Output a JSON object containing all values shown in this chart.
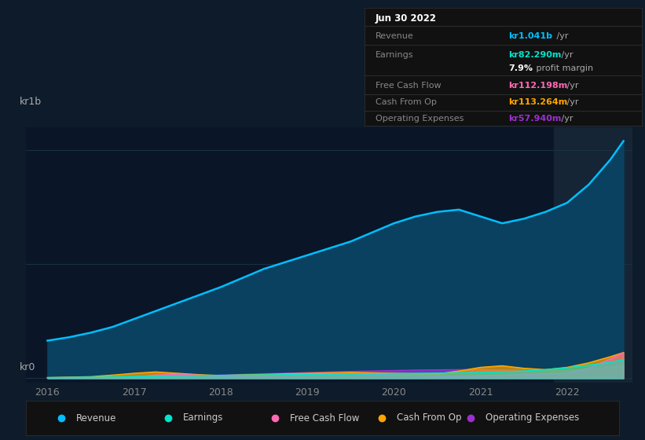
{
  "bg_color": "#0d1b2a",
  "plot_bg_color": "#0a1628",
  "grid_color": "#1a3040",
  "years": [
    2016.0,
    2016.25,
    2016.5,
    2016.75,
    2017.0,
    2017.25,
    2017.5,
    2017.75,
    2018.0,
    2018.25,
    2018.5,
    2018.75,
    2019.0,
    2019.25,
    2019.5,
    2019.75,
    2020.0,
    2020.25,
    2020.5,
    2020.75,
    2021.0,
    2021.25,
    2021.5,
    2021.75,
    2022.0,
    2022.25,
    2022.5,
    2022.65
  ],
  "revenue": [
    165,
    180,
    200,
    225,
    260,
    295,
    330,
    365,
    400,
    440,
    480,
    510,
    540,
    570,
    600,
    640,
    680,
    710,
    730,
    740,
    710,
    680,
    700,
    730,
    770,
    850,
    960,
    1041
  ],
  "earnings": [
    3,
    4,
    5,
    6,
    8,
    10,
    11,
    12,
    13,
    14,
    15,
    16,
    17,
    18,
    19,
    20,
    21,
    22,
    23,
    24,
    26,
    28,
    32,
    38,
    46,
    58,
    70,
    82
  ],
  "free_cash_flow": [
    2,
    3,
    4,
    4,
    5,
    14,
    18,
    14,
    9,
    8,
    10,
    12,
    14,
    16,
    18,
    17,
    14,
    12,
    10,
    9,
    11,
    13,
    16,
    20,
    22,
    45,
    85,
    112
  ],
  "cash_from_op": [
    3,
    5,
    7,
    14,
    22,
    28,
    22,
    16,
    12,
    15,
    17,
    20,
    22,
    24,
    26,
    24,
    22,
    20,
    19,
    32,
    48,
    55,
    44,
    38,
    48,
    68,
    95,
    113
  ],
  "operating_expenses": [
    1,
    2,
    3,
    4,
    5,
    7,
    9,
    12,
    14,
    17,
    20,
    22,
    25,
    28,
    30,
    32,
    34,
    36,
    37,
    38,
    38,
    36,
    34,
    32,
    34,
    38,
    48,
    58
  ],
  "revenue_color": "#00bfff",
  "revenue_fill_color": "#0a4060",
  "earnings_color": "#00e5cc",
  "free_cash_flow_color": "#ff69b4",
  "cash_from_op_color": "#ffa500",
  "operating_expenses_color": "#9b30d0",
  "highlight_color": "#162535",
  "ylabel_kr1b": "kr1b",
  "ylabel_kr0": "kr0",
  "xlim": [
    2015.75,
    2022.75
  ],
  "ylim": [
    -20,
    1100
  ],
  "highlight_x_start": 2021.85,
  "highlight_x_end": 2022.75,
  "tooltip_date": "Jun 30 2022",
  "tooltip_revenue_label": "Revenue",
  "tooltip_revenue_val": "kr1.041b",
  "tooltip_earnings_label": "Earnings",
  "tooltip_earnings_val": "kr82.290m",
  "tooltip_margin_pct": "7.9%",
  "tooltip_margin_text": " profit margin",
  "tooltip_fcf_label": "Free Cash Flow",
  "tooltip_fcf_val": "kr112.198m",
  "tooltip_cashop_label": "Cash From Op",
  "tooltip_cashop_val": "kr113.264m",
  "tooltip_opex_label": "Operating Expenses",
  "tooltip_opex_val": "kr57.940m",
  "legend_items": [
    "Revenue",
    "Earnings",
    "Free Cash Flow",
    "Cash From Op",
    "Operating Expenses"
  ]
}
